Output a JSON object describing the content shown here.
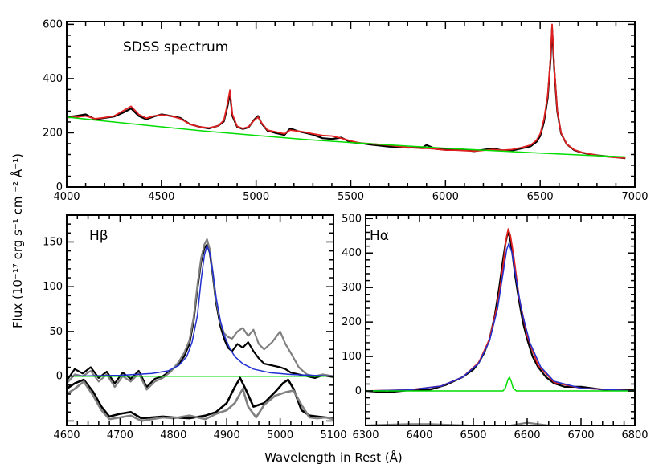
{
  "chart_data": [
    {
      "type": "line",
      "label": "SDSS spectrum",
      "xlim": [
        4000,
        7000
      ],
      "ylim": [
        0,
        610
      ],
      "xticks": [
        4000,
        4500,
        5000,
        5500,
        6000,
        6500,
        7000
      ],
      "yticks": [
        0,
        200,
        400,
        600
      ],
      "series": [
        {
          "role": "observed",
          "color": "#000000",
          "x": [
            4000,
            4050,
            4100,
            4150,
            4200,
            4250,
            4300,
            4340,
            4380,
            4420,
            4460,
            4500,
            4550,
            4600,
            4650,
            4700,
            4750,
            4800,
            4830,
            4850,
            4862,
            4875,
            4900,
            4930,
            4960,
            4990,
            5010,
            5030,
            5060,
            5100,
            5150,
            5180,
            5220,
            5260,
            5300,
            5350,
            5400,
            5450,
            5500,
            5550,
            5600,
            5700,
            5800,
            5880,
            5900,
            5950,
            6000,
            6050,
            6100,
            6150,
            6200,
            6250,
            6300,
            6350,
            6400,
            6450,
            6480,
            6500,
            6520,
            6540,
            6555,
            6563,
            6575,
            6590,
            6610,
            6640,
            6680,
            6720,
            6760,
            6800,
            6850,
            6900,
            6950
          ],
          "y": [
            258,
            262,
            268,
            250,
            255,
            260,
            275,
            290,
            262,
            250,
            260,
            268,
            262,
            255,
            232,
            222,
            216,
            226,
            242,
            300,
            348,
            262,
            222,
            214,
            220,
            248,
            262,
            234,
            208,
            200,
            192,
            216,
            206,
            200,
            193,
            180,
            177,
            182,
            165,
            162,
            157,
            149,
            145,
            146,
            155,
            140,
            138,
            138,
            138,
            132,
            137,
            142,
            135,
            134,
            142,
            150,
            166,
            188,
            240,
            330,
            470,
            585,
            430,
            280,
            198,
            158,
            136,
            127,
            121,
            117,
            113,
            110,
            106
          ]
        },
        {
          "role": "model",
          "color": "#e02020",
          "x": [
            4000,
            4050,
            4100,
            4150,
            4200,
            4250,
            4300,
            4340,
            4380,
            4420,
            4460,
            4500,
            4550,
            4600,
            4650,
            4700,
            4750,
            4800,
            4830,
            4850,
            4862,
            4875,
            4900,
            4930,
            4960,
            4990,
            5010,
            5030,
            5060,
            5100,
            5150,
            5180,
            5220,
            5260,
            5300,
            5350,
            5400,
            5450,
            5500,
            5550,
            5600,
            5700,
            5800,
            5880,
            5900,
            5950,
            6000,
            6050,
            6100,
            6150,
            6200,
            6250,
            6300,
            6350,
            6400,
            6450,
            6480,
            6500,
            6520,
            6540,
            6555,
            6563,
            6575,
            6590,
            6610,
            6640,
            6680,
            6720,
            6760,
            6800,
            6850,
            6900,
            6950
          ],
          "y": [
            256,
            258,
            262,
            252,
            256,
            262,
            282,
            298,
            268,
            254,
            262,
            266,
            262,
            252,
            232,
            222,
            218,
            226,
            246,
            310,
            358,
            268,
            224,
            216,
            222,
            246,
            258,
            236,
            210,
            204,
            196,
            210,
            206,
            202,
            196,
            190,
            188,
            180,
            170,
            162,
            160,
            154,
            146,
            142,
            143,
            140,
            136,
            136,
            134,
            132,
            135,
            138,
            136,
            138,
            145,
            155,
            172,
            196,
            250,
            340,
            480,
            600,
            440,
            285,
            200,
            158,
            137,
            128,
            122,
            117,
            112,
            109,
            107
          ]
        },
        {
          "role": "continuum",
          "color": "#00dd00",
          "x": [
            4000,
            4250,
            4500,
            4750,
            5000,
            5250,
            5500,
            5750,
            6000,
            6250,
            6500,
            6750,
            6950
          ],
          "y": [
            258,
            240,
            222,
            205,
            190,
            176,
            164,
            153,
            143,
            134,
            125,
            117,
            111
          ]
        }
      ]
    },
    {
      "type": "line",
      "label": "Hβ",
      "xlim": [
        4600,
        5100
      ],
      "ylim": [
        -55,
        180
      ],
      "xticks": [
        4600,
        4700,
        4800,
        4900,
        5000,
        5100
      ],
      "yticks": [
        0,
        50,
        100,
        150
      ],
      "series": [
        {
          "role": "observed",
          "color": "#000000",
          "x": [
            4600,
            4615,
            4630,
            4645,
            4660,
            4675,
            4690,
            4705,
            4720,
            4735,
            4750,
            4765,
            4780,
            4795,
            4810,
            4820,
            4830,
            4838,
            4845,
            4852,
            4858,
            4863,
            4868,
            4874,
            4880,
            4888,
            4895,
            4902,
            4910,
            4920,
            4930,
            4940,
            4950,
            4960,
            4970,
            4985,
            5000,
            5010,
            5020,
            5035,
            5050,
            5065,
            5080,
            5100
          ],
          "y": [
            -5,
            8,
            3,
            10,
            -2,
            5,
            -8,
            4,
            -3,
            6,
            -12,
            -3,
            0,
            6,
            14,
            22,
            36,
            62,
            98,
            128,
            143,
            147,
            138,
            112,
            82,
            56,
            42,
            32,
            28,
            36,
            32,
            38,
            28,
            20,
            14,
            12,
            10,
            8,
            4,
            2,
            0,
            -2,
            1,
            -1
          ]
        },
        {
          "role": "observed-gray",
          "color": "#808080",
          "x": [
            4600,
            4615,
            4630,
            4645,
            4660,
            4675,
            4690,
            4705,
            4720,
            4735,
            4750,
            4765,
            4780,
            4795,
            4810,
            4820,
            4830,
            4838,
            4845,
            4852,
            4858,
            4863,
            4868,
            4874,
            4880,
            4888,
            4895,
            4902,
            4910,
            4920,
            4930,
            4940,
            4950,
            4960,
            4970,
            4985,
            5000,
            5010,
            5020,
            5035,
            5050,
            5065,
            5080,
            5100
          ],
          "y": [
            -8,
            2,
            0,
            6,
            -6,
            2,
            -12,
            0,
            -6,
            3,
            -15,
            -6,
            -2,
            5,
            16,
            26,
            40,
            66,
            102,
            132,
            147,
            153,
            142,
            115,
            86,
            60,
            48,
            44,
            42,
            50,
            54,
            45,
            52,
            36,
            30,
            38,
            50,
            36,
            26,
            10,
            2,
            0,
            2,
            0
          ]
        },
        {
          "role": "broad-fit",
          "color": "#1f2fd0",
          "x": [
            4600,
            4700,
            4760,
            4790,
            4810,
            4825,
            4835,
            4845,
            4852,
            4858,
            4863,
            4868,
            4874,
            4880,
            4888,
            4895,
            4905,
            4915,
            4930,
            4950,
            4980,
            5020,
            5060,
            5100
          ],
          "y": [
            0,
            1,
            3,
            6,
            12,
            22,
            38,
            68,
            108,
            135,
            146,
            138,
            116,
            88,
            62,
            46,
            32,
            22,
            14,
            8,
            4,
            2,
            1,
            0
          ]
        },
        {
          "role": "baseline",
          "color": "#00dd00",
          "x": [
            4600,
            5100
          ],
          "y": [
            0,
            0
          ]
        },
        {
          "role": "component-black",
          "color": "#000000",
          "x": [
            4600,
            4615,
            4632,
            4650,
            4665,
            4680,
            4700,
            4720,
            4740,
            4760,
            4780,
            4800,
            4830,
            4860,
            4880,
            4900,
            4915,
            4925,
            4935,
            4950,
            4970,
            4990,
            5005,
            5015,
            5025,
            5040,
            5055,
            5070,
            5085,
            5100
          ],
          "y": [
            -14,
            -8,
            -4,
            -18,
            -34,
            -45,
            -42,
            -40,
            -47,
            -46,
            -45,
            -46,
            -47,
            -44,
            -40,
            -30,
            -12,
            -2,
            -14,
            -34,
            -30,
            -18,
            -8,
            -4,
            -14,
            -38,
            -44,
            -45,
            -46,
            -47
          ]
        },
        {
          "role": "component-gray",
          "color": "#808080",
          "x": [
            4600,
            4615,
            4632,
            4650,
            4665,
            4680,
            4700,
            4720,
            4740,
            4760,
            4780,
            4800,
            4830,
            4860,
            4880,
            4900,
            4915,
            4930,
            4940,
            4955,
            4970,
            4990,
            5010,
            5025,
            5040,
            5055,
            5070,
            5085,
            5100
          ],
          "y": [
            -20,
            -14,
            -6,
            -22,
            -38,
            -48,
            -46,
            -44,
            -50,
            -48,
            -46,
            -47,
            -44,
            -48,
            -42,
            -38,
            -30,
            -14,
            -34,
            -46,
            -32,
            -22,
            -18,
            -16,
            -32,
            -46,
            -47,
            -46,
            -48
          ]
        }
      ]
    },
    {
      "type": "line",
      "label": "Hα",
      "xlim": [
        6300,
        6800
      ],
      "ylim": [
        -100,
        510
      ],
      "xticks": [
        6300,
        6400,
        6500,
        6600,
        6700,
        6800
      ],
      "yticks": [
        0,
        100,
        200,
        300,
        400,
        500
      ],
      "series": [
        {
          "role": "observed",
          "color": "#000000",
          "x": [
            6300,
            6340,
            6380,
            6420,
            6450,
            6480,
            6500,
            6510,
            6520,
            6530,
            6540,
            6548,
            6555,
            6560,
            6564,
            6568,
            6572,
            6578,
            6585,
            6592,
            6600,
            6610,
            6620,
            6635,
            6650,
            6670,
            6700,
            6740,
            6800
          ],
          "y": [
            0,
            -4,
            2,
            4,
            18,
            40,
            62,
            82,
            110,
            150,
            220,
            300,
            380,
            430,
            460,
            445,
            405,
            330,
            260,
            200,
            150,
            100,
            70,
            40,
            22,
            12,
            12,
            4,
            2
          ]
        },
        {
          "role": "model",
          "color": "#e02020",
          "x": [
            6300,
            6380,
            6440,
            6480,
            6510,
            6530,
            6545,
            6555,
            6561,
            6565,
            6569,
            6575,
            6585,
            6600,
            6620,
            6650,
            6700,
            6800
          ],
          "y": [
            0,
            3,
            14,
            40,
            82,
            150,
            250,
            360,
            440,
            470,
            450,
            390,
            270,
            160,
            75,
            25,
            8,
            0
          ]
        },
        {
          "role": "broad-fit",
          "color": "#1f2fd0",
          "x": [
            6300,
            6380,
            6440,
            6480,
            6510,
            6530,
            6545,
            6555,
            6562,
            6566,
            6572,
            6580,
            6590,
            6605,
            6625,
            6650,
            6700,
            6800
          ],
          "y": [
            0,
            3,
            14,
            40,
            80,
            145,
            238,
            340,
            410,
            428,
            400,
            320,
            230,
            140,
            70,
            28,
            8,
            0
          ]
        },
        {
          "role": "narrow",
          "color": "#00dd00",
          "x": [
            6300,
            6555,
            6560,
            6564,
            6567,
            6570,
            6574,
            6580,
            6800
          ],
          "y": [
            0,
            0,
            10,
            32,
            40,
            30,
            8,
            0,
            0
          ]
        },
        {
          "role": "residual",
          "color": "#808080",
          "x": [
            6300,
            6340,
            6380,
            6420,
            6450,
            6490,
            6530,
            6570,
            6600,
            6620,
            6650,
            6700,
            6750,
            6800
          ],
          "y": [
            -100,
            -98,
            -96,
            -96,
            -98,
            -100,
            -102,
            -100,
            -92,
            -96,
            -102,
            -104,
            -104,
            -104
          ]
        }
      ]
    }
  ],
  "labels": {
    "top_panel": "SDSS spectrum",
    "hbeta_panel": "Hβ",
    "halpha_panel": "Hα",
    "y_axis": "Flux (10⁻¹⁷ erg s⁻¹ cm ⁻² Å⁻¹)",
    "x_axis": "Wavelength in Rest (Å)"
  }
}
